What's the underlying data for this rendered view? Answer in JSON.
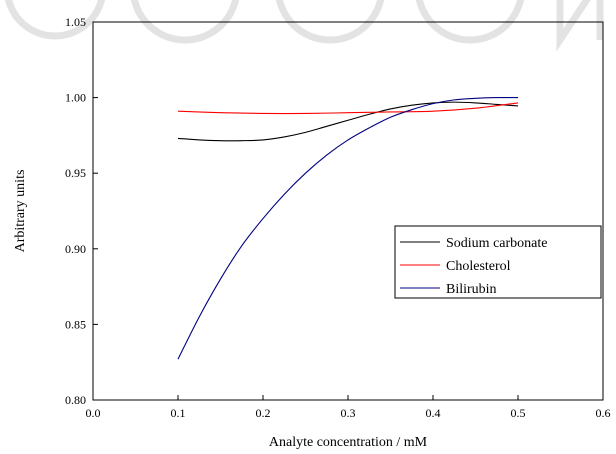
{
  "chart_data": {
    "type": "line",
    "xlabel": "Analyte concentration / mM",
    "ylabel": "Arbitrary units",
    "xlim": [
      0.0,
      0.6
    ],
    "ylim": [
      0.8,
      1.05
    ],
    "xticks": [
      "0.0",
      "0.1",
      "0.2",
      "0.3",
      "0.4",
      "0.5",
      "0.6"
    ],
    "yticks": [
      "0.80",
      "0.85",
      "0.90",
      "0.95",
      "1.00",
      "1.05"
    ],
    "grid": false,
    "legend_position": "center-right",
    "series": [
      {
        "name": "Sodium carbonate",
        "color": "#000000",
        "x": [
          0.1,
          0.125,
          0.15,
          0.175,
          0.2,
          0.225,
          0.25,
          0.275,
          0.3,
          0.325,
          0.35,
          0.375,
          0.4,
          0.425,
          0.45,
          0.475,
          0.5
        ],
        "y": [
          0.973,
          0.972,
          0.9715,
          0.9715,
          0.972,
          0.974,
          0.977,
          0.981,
          0.985,
          0.989,
          0.9925,
          0.995,
          0.9965,
          0.997,
          0.9965,
          0.9955,
          0.9945
        ]
      },
      {
        "name": "Cholesterol",
        "color": "#ff0000",
        "x": [
          0.1,
          0.15,
          0.2,
          0.25,
          0.3,
          0.35,
          0.4,
          0.45,
          0.5
        ],
        "y": [
          0.991,
          0.99,
          0.9895,
          0.9895,
          0.99,
          0.9905,
          0.991,
          0.993,
          0.9965
        ]
      },
      {
        "name": "Bilirubin",
        "color": "#000080",
        "x": [
          0.1,
          0.125,
          0.15,
          0.175,
          0.2,
          0.225,
          0.25,
          0.275,
          0.3,
          0.325,
          0.35,
          0.375,
          0.4,
          0.425,
          0.45,
          0.475,
          0.5
        ],
        "y": [
          0.827,
          0.855,
          0.88,
          0.902,
          0.92,
          0.936,
          0.95,
          0.962,
          0.972,
          0.98,
          0.987,
          0.992,
          0.996,
          0.9985,
          0.9995,
          1.0,
          1.0
        ]
      }
    ]
  }
}
